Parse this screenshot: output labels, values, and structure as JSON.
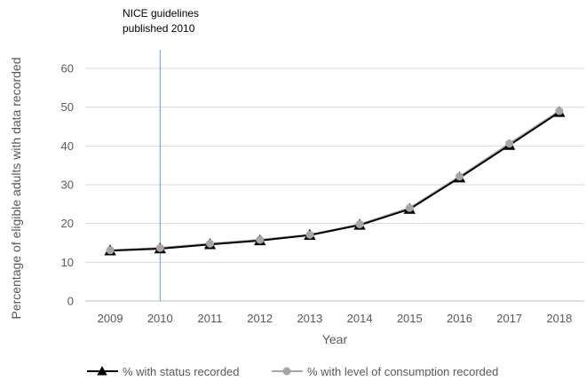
{
  "chart_data": {
    "type": "line",
    "title": "",
    "xlabel": "Year",
    "ylabel": "Percentage of eligible adults with data recorded",
    "x": [
      "2009",
      "2010",
      "2011",
      "2012",
      "2013",
      "2014",
      "2015",
      "2016",
      "2017",
      "2018"
    ],
    "ylim": [
      0,
      60
    ],
    "yticks": [
      0,
      10,
      20,
      30,
      40,
      50,
      60
    ],
    "grid": true,
    "legend": "bottom",
    "series": [
      {
        "name": "% with status recorded",
        "values": [
          13.0,
          13.5,
          14.6,
          15.6,
          17.0,
          19.6,
          23.7,
          31.8,
          40.2,
          48.7
        ],
        "color": "#000000",
        "marker": "triangle"
      },
      {
        "name": "% with level of consumption recorded",
        "values": [
          13.1,
          13.7,
          14.8,
          15.8,
          17.1,
          19.8,
          24.0,
          32.1,
          40.6,
          49.0
        ],
        "color": "#a6a6a6",
        "marker": "circle"
      }
    ],
    "annotations": [
      {
        "lines": [
          "NICE guidelines",
          "published 2010"
        ],
        "x": "2010",
        "kind": "vertical-line",
        "color": "#5b9bd5"
      }
    ]
  }
}
